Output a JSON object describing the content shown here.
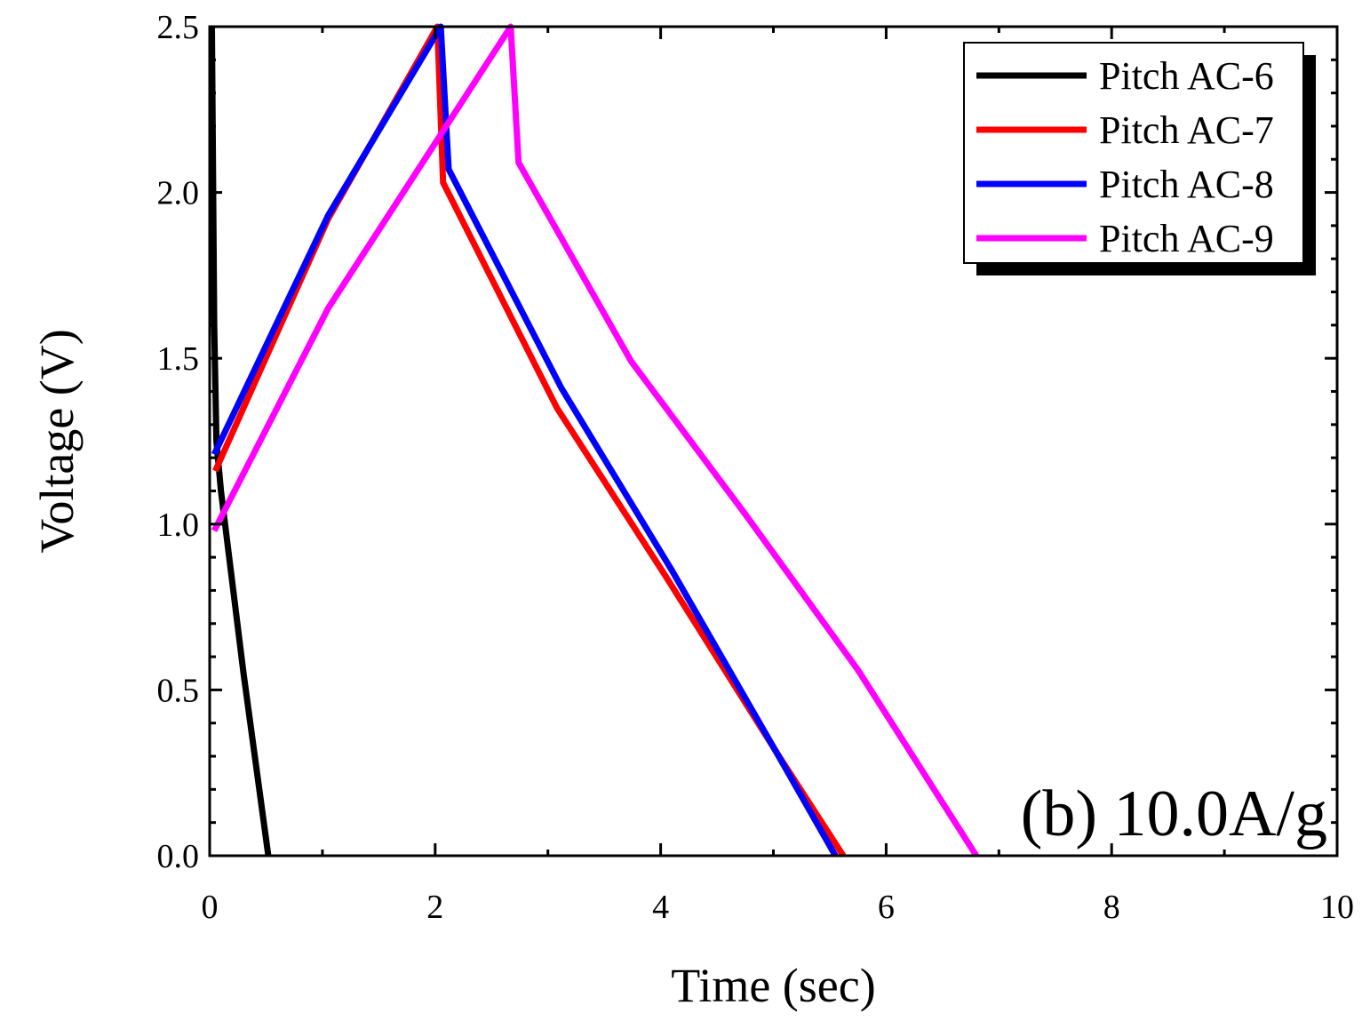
{
  "chart_data": {
    "type": "line",
    "title": "",
    "xlabel": "Time (sec)",
    "ylabel": "Voltage (V)",
    "xlim": [
      0,
      10
    ],
    "ylim": [
      0,
      2.5
    ],
    "x_ticks": [
      "0",
      "2",
      "4",
      "6",
      "8",
      "10"
    ],
    "y_ticks": [
      "0.0",
      "0.5",
      "1.0",
      "1.5",
      "2.0",
      "2.5"
    ],
    "x_tick_values": [
      0,
      2,
      4,
      6,
      8,
      10
    ],
    "y_tick_values": [
      0,
      0.5,
      1.0,
      1.5,
      2.0,
      2.5
    ],
    "annotation": "(b) 10.0A/g",
    "legend_position": "top-right",
    "grid": false,
    "series": [
      {
        "name": "Pitch AC-6",
        "color": "#000000",
        "x": [
          0.02,
          0.04,
          0.06,
          0.1,
          0.3,
          0.52
        ],
        "y": [
          2.5,
          1.6,
          1.25,
          1.1,
          0.55,
          0.0
        ]
      },
      {
        "name": "Pitch AC-7",
        "color": "#ff0000",
        "x": [
          0.05,
          1.05,
          2.02,
          2.07,
          3.08,
          4.05,
          5.05,
          5.62
        ],
        "y": [
          1.16,
          1.92,
          2.5,
          2.03,
          1.35,
          0.84,
          0.3,
          0.0
        ]
      },
      {
        "name": "Pitch AC-8",
        "color": "#0000ff",
        "x": [
          0.04,
          1.05,
          2.05,
          2.12,
          3.12,
          4.1,
          5.08,
          5.55
        ],
        "y": [
          1.21,
          1.93,
          2.5,
          2.07,
          1.41,
          0.86,
          0.28,
          0.0
        ]
      },
      {
        "name": "Pitch AC-9",
        "color": "#ff00ff",
        "x": [
          0.04,
          1.05,
          2.67,
          2.74,
          3.74,
          4.75,
          5.75,
          6.8
        ],
        "y": [
          0.98,
          1.65,
          2.5,
          2.09,
          1.49,
          1.03,
          0.56,
          0.0
        ]
      }
    ]
  }
}
